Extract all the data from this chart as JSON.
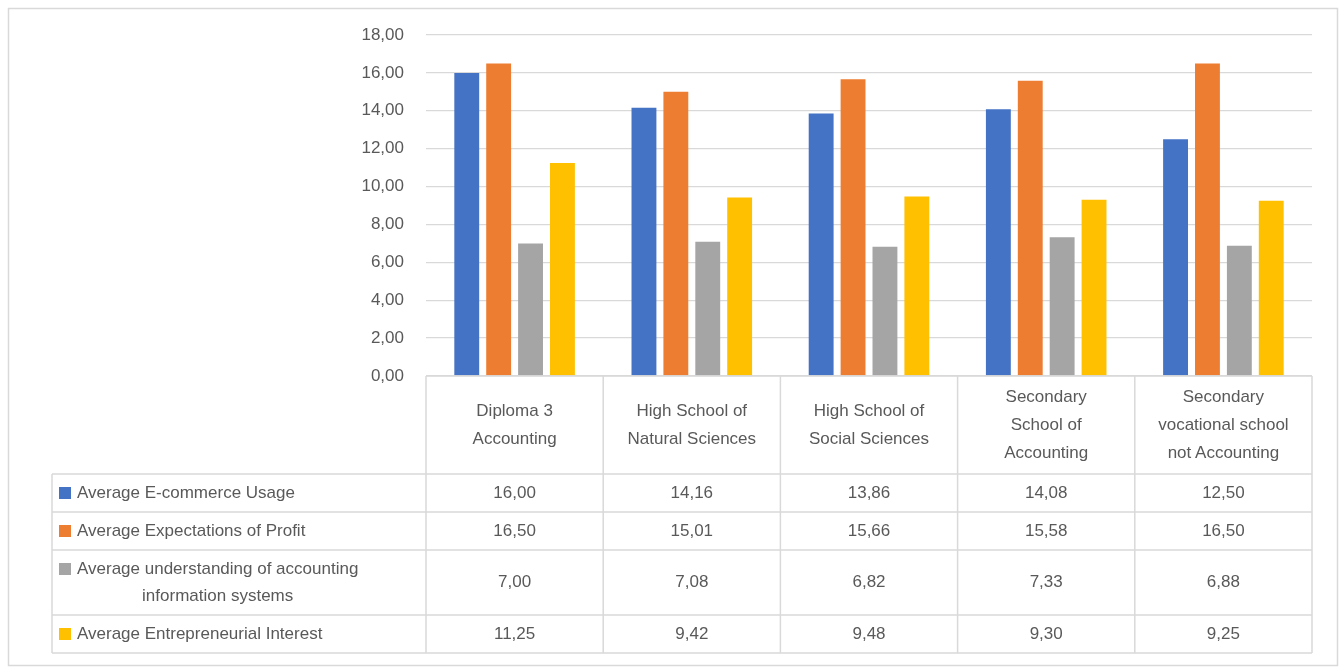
{
  "chart_data": {
    "type": "bar",
    "categories": [
      "Diploma 3 Accounting",
      "High School of Natural Sciences",
      "High School of Social Sciences",
      "Secondary School of Accounting",
      "Secondary vocational school not Accounting"
    ],
    "series": [
      {
        "name": "Average E-commerce Usage",
        "color": "#4472c4",
        "values": [
          16.0,
          14.16,
          13.86,
          14.08,
          12.5
        ],
        "value_labels": [
          "16,00",
          "14,16",
          "13,86",
          "14,08",
          "12,50"
        ]
      },
      {
        "name": "Average Expectations of Profit",
        "color": "#ed7d31",
        "values": [
          16.5,
          15.01,
          15.66,
          15.58,
          16.5
        ],
        "value_labels": [
          "16,50",
          "15,01",
          "15,66",
          "15,58",
          "16,50"
        ]
      },
      {
        "name": "Average understanding of accounting information systems",
        "color": "#a5a5a5",
        "values": [
          7.0,
          7.08,
          6.82,
          7.33,
          6.88
        ],
        "value_labels": [
          "7,00",
          "7,08",
          "6,82",
          "7,33",
          "6,88"
        ]
      },
      {
        "name": "Average Entrepreneurial Interest",
        "color": "#ffc000",
        "values": [
          11.25,
          9.42,
          9.48,
          9.3,
          9.25
        ],
        "value_labels": [
          "11,25",
          "9,42",
          "9,48",
          "9,30",
          "9,25"
        ]
      }
    ],
    "ylim": [
      0,
      18
    ],
    "yticks": [
      {
        "value": 0,
        "label": "0,00"
      },
      {
        "value": 2,
        "label": "2,00"
      },
      {
        "value": 4,
        "label": "4,00"
      },
      {
        "value": 6,
        "label": "6,00"
      },
      {
        "value": 8,
        "label": "8,00"
      },
      {
        "value": 10,
        "label": "10,00"
      },
      {
        "value": 12,
        "label": "12,00"
      },
      {
        "value": 14,
        "label": "14,00"
      },
      {
        "value": 16,
        "label": "16,00"
      },
      {
        "value": 18,
        "label": "18,00"
      }
    ],
    "grid": "y",
    "legend": "bottom left"
  }
}
